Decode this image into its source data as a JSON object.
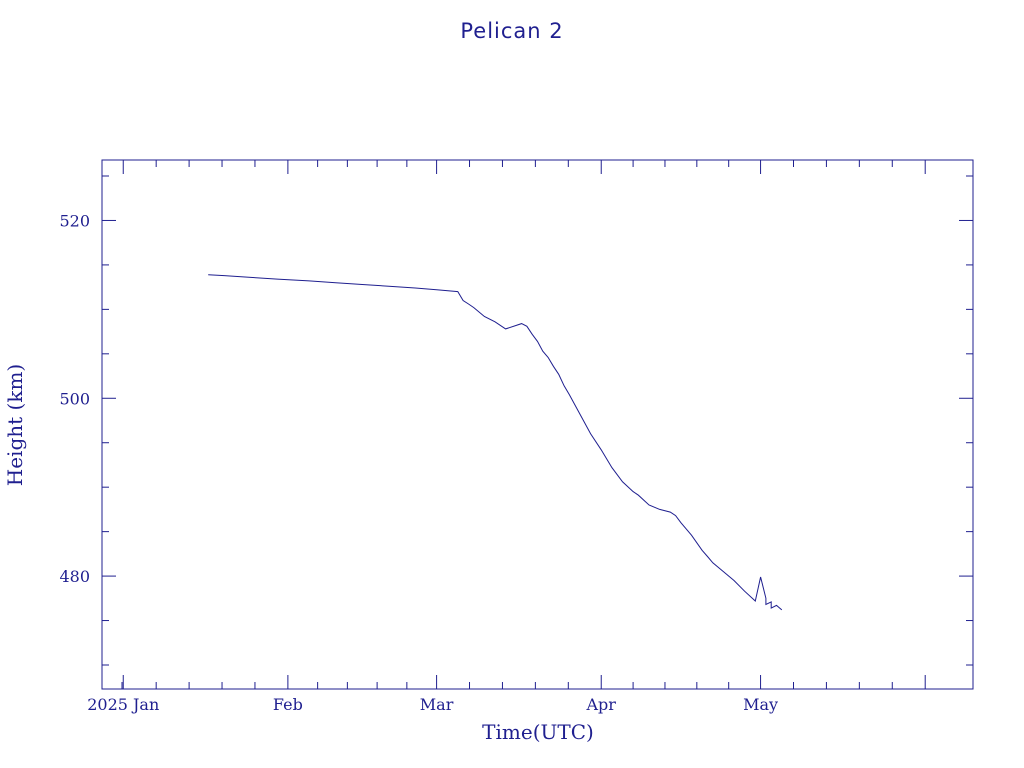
{
  "chart_data": {
    "type": "line",
    "title": "Pelican 2",
    "xlabel": "Time(UTC)",
    "ylabel": "Height (km)",
    "x_tick_labels": [
      "2025 Jan",
      "Feb",
      "Mar",
      "Apr",
      "May"
    ],
    "x_tick_dates": [
      "2025-01-01",
      "2025-02-01",
      "2025-03-01",
      "2025-04-01",
      "2025-05-01"
    ],
    "xlim": [
      "2024-12-28",
      "2025-06-10"
    ],
    "y_ticks": [
      480,
      500,
      520
    ],
    "y_tick_labels": [
      "480",
      "500",
      "520"
    ],
    "ylim": [
      467.3,
      526.8
    ],
    "grid": false,
    "color": "#1f1f8f",
    "series": [
      {
        "x": [
          "2025-01-17",
          "2025-01-20",
          "2025-01-25",
          "2025-01-30",
          "2025-02-05",
          "2025-02-10",
          "2025-02-15",
          "2025-02-20",
          "2025-02-25",
          "2025-03-01",
          "2025-03-05",
          "2025-03-06",
          "2025-03-07",
          "2025-03-08",
          "2025-03-10",
          "2025-03-12",
          "2025-03-14",
          "2025-03-16",
          "2025-03-17",
          "2025-03-18",
          "2025-03-19",
          "2025-03-20",
          "2025-03-21",
          "2025-03-22",
          "2025-03-23",
          "2025-03-24",
          "2025-03-25",
          "2025-03-26",
          "2025-03-28",
          "2025-03-30",
          "2025-04-01",
          "2025-04-03",
          "2025-04-05",
          "2025-04-07",
          "2025-04-08",
          "2025-04-10",
          "2025-04-12",
          "2025-04-14",
          "2025-04-15",
          "2025-04-16",
          "2025-04-18",
          "2025-04-20",
          "2025-04-21",
          "2025-04-22",
          "2025-04-24",
          "2025-04-26",
          "2025-04-28",
          "2025-04-30",
          "2025-05-01",
          "2025-05-02",
          "2025-05-02",
          "2025-05-03",
          "2025-05-03",
          "2025-05-04",
          "2025-05-05"
        ],
        "values": [
          513.9,
          513.8,
          513.6,
          513.4,
          513.2,
          513.0,
          512.8,
          512.6,
          512.4,
          512.2,
          512.0,
          511.0,
          510.6,
          510.2,
          509.2,
          508.6,
          507.8,
          508.2,
          508.4,
          508.1,
          507.2,
          506.4,
          505.3,
          504.6,
          503.6,
          502.7,
          501.4,
          500.4,
          498.2,
          496.0,
          494.2,
          492.2,
          490.6,
          489.5,
          489.1,
          488.0,
          487.5,
          487.2,
          486.8,
          486.0,
          484.6,
          482.9,
          482.2,
          481.5,
          480.5,
          479.5,
          478.3,
          477.2,
          479.9,
          477.5,
          476.8,
          477.1,
          476.4,
          476.7,
          476.2
        ]
      }
    ]
  }
}
